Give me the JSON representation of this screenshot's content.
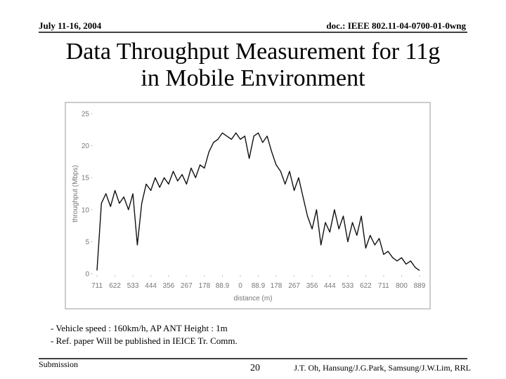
{
  "header": {
    "date": "July 11-16, 2004",
    "doc": "doc.: IEEE 802.11-04-0700-01-0wng"
  },
  "title_lines": [
    "Data Throughput Measurement for 11g",
    "in Mobile Environment"
  ],
  "chart_data": {
    "type": "line",
    "ylabel": "throughput (Mbps)",
    "xlabel": "distance (m)",
    "x": [
      -711,
      -689,
      -667,
      -644,
      -622,
      -600,
      -578,
      -555,
      -533,
      -511,
      -489,
      -467,
      -444,
      -422,
      -400,
      -378,
      -356,
      -333,
      -311,
      -289,
      -267,
      -244,
      -222,
      -200,
      -178,
      -156,
      -133,
      -111,
      -89,
      -67,
      -44,
      -22,
      0,
      22,
      44,
      67,
      89,
      111,
      133,
      156,
      178,
      200,
      222,
      244,
      267,
      289,
      311,
      333,
      356,
      378,
      400,
      422,
      444,
      467,
      489,
      511,
      533,
      556,
      578,
      600,
      622,
      644,
      667,
      689,
      711,
      733,
      756,
      778,
      800,
      822,
      845,
      867,
      889
    ],
    "values": [
      0.5,
      11,
      12.5,
      10.5,
      13,
      11,
      12,
      10,
      12.5,
      4.5,
      11,
      14,
      13,
      15,
      13.5,
      15,
      14,
      16,
      14.5,
      15.5,
      14,
      16.5,
      15,
      17,
      16.5,
      19,
      20.5,
      21,
      22,
      21.5,
      21,
      22,
      21,
      21.5,
      18,
      21.5,
      22,
      20.5,
      21.5,
      19,
      17,
      16,
      14,
      16,
      13,
      15,
      12,
      9,
      7,
      10,
      4.5,
      8,
      6.5,
      10,
      7,
      9,
      5,
      8,
      6,
      9,
      4,
      6,
      4.5,
      5.5,
      3,
      3.5,
      2.5,
      2,
      2.5,
      1.5,
      2,
      1,
      0.5
    ],
    "color": "#111111",
    "xlim": [
      -746,
      917
    ],
    "ylim": [
      0,
      25
    ],
    "yticks": [
      0,
      5,
      10,
      15,
      20,
      25
    ],
    "xticks": [
      {
        "value": -711,
        "label": "711"
      },
      {
        "value": -622,
        "label": "622"
      },
      {
        "value": -533,
        "label": "533"
      },
      {
        "value": -444,
        "label": "444"
      },
      {
        "value": -356,
        "label": "356"
      },
      {
        "value": -267,
        "label": "267"
      },
      {
        "value": -178,
        "label": "178"
      },
      {
        "value": -88.9,
        "label": "88.9"
      },
      0,
      88.9,
      178,
      267,
      356,
      444,
      533,
      622,
      711,
      800,
      889
    ],
    "grid": false
  },
  "notes": [
    "- Vehicle speed : 160km/h, AP ANT Height : 1m",
    "- Ref. paper Will be published in IEICE Tr. Comm."
  ],
  "footer": {
    "left": "Submission",
    "page": "20",
    "right": "J.T. Oh, Hansung/J.G.Park, Samsung/J.W.Lim, RRL"
  }
}
